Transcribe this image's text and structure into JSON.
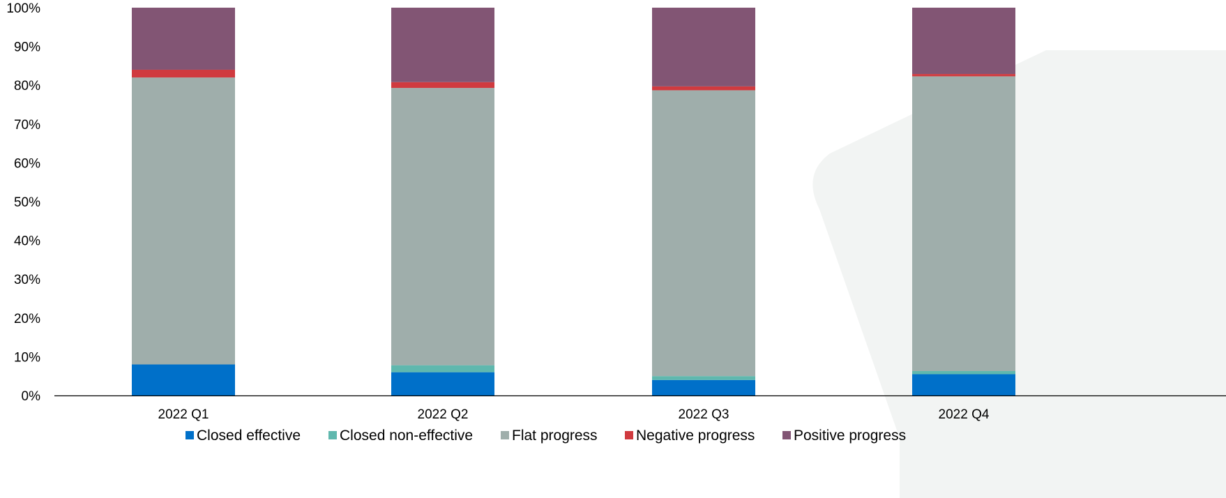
{
  "chart_data": {
    "type": "bar",
    "stacked": true,
    "percent_axis": true,
    "categories": [
      "2022 Q1",
      "2022 Q2",
      "2022 Q3",
      "2022 Q4"
    ],
    "series": [
      {
        "name": "Closed effective",
        "color": "#0070C9",
        "values": [
          8,
          6,
          4,
          5.5
        ]
      },
      {
        "name": "Closed non-effective",
        "color": "#5FB8AE",
        "values": [
          0,
          1.8,
          1,
          0.8
        ]
      },
      {
        "name": "Flat progress",
        "color": "#9FAEAB",
        "values": [
          74,
          71.5,
          73.7,
          76
        ]
      },
      {
        "name": "Negative progress",
        "color": "#D03A3F",
        "values": [
          2,
          1.5,
          1,
          0.6
        ]
      },
      {
        "name": "Positive progress",
        "color": "#825574",
        "values": [
          16,
          19.2,
          20.3,
          17.1
        ]
      }
    ],
    "ylim": [
      0,
      100
    ],
    "yticks": [
      "0%",
      "10%",
      "20%",
      "30%",
      "40%",
      "50%",
      "60%",
      "70%",
      "80%",
      "90%",
      "100%"
    ],
    "grid": false,
    "legend_position": "bottom"
  },
  "background_color": "#F2F4F3"
}
